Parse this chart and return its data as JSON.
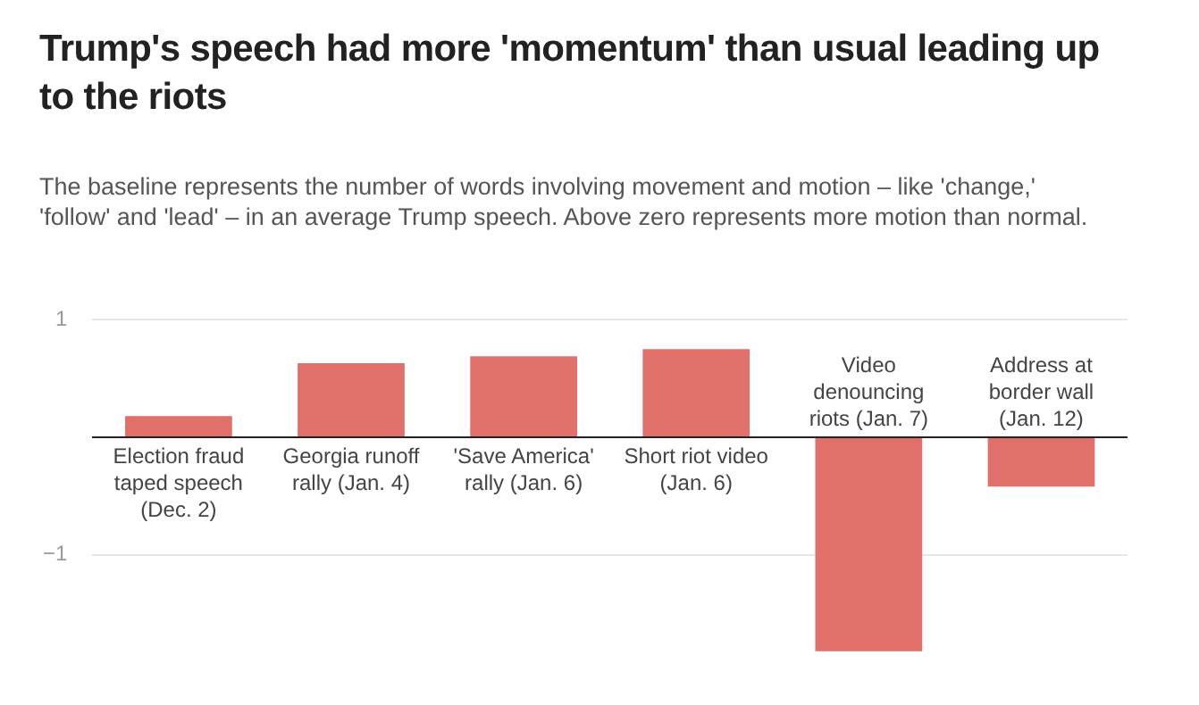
{
  "chart_data": {
    "type": "bar",
    "title": "Trump's speech had more 'momentum' than usual leading up to the riots",
    "subtitle": "The baseline represents the number of words involving movement and motion – like 'change,' 'follow' and 'lead' – in an average Trump speech. Above zero represents more motion than normal.",
    "categories": [
      "Election fraud taped speech (Dec. 2)",
      "Georgia runoff rally (Jan. 4)",
      "'Save America' rally (Jan. 6)",
      "Short riot video (Jan. 6)",
      "Video denouncing riots (Jan. 7)",
      "Address at border wall (Jan. 12)"
    ],
    "values": [
      0.18,
      0.63,
      0.69,
      0.75,
      -1.82,
      -0.42
    ],
    "color": "#e2706a",
    "ylim": [
      -1.85,
      1
    ],
    "yticks": [
      {
        "value": -1,
        "label": "−1"
      },
      {
        "value": 0,
        "label": null
      },
      1
    ],
    "grid": "y",
    "legend": false
  }
}
